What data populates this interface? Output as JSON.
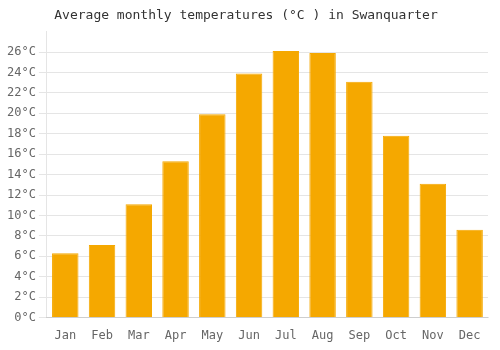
{
  "chart_data": {
    "type": "bar",
    "title": "Average monthly temperatures (°C ) in Swanquarter",
    "categories": [
      "Jan",
      "Feb",
      "Mar",
      "Apr",
      "May",
      "Jun",
      "Jul",
      "Aug",
      "Sep",
      "Oct",
      "Nov",
      "Dec"
    ],
    "values": [
      6.3,
      7.1,
      11.1,
      15.3,
      19.9,
      23.9,
      26.1,
      25.9,
      23.1,
      17.8,
      13.1,
      8.6
    ],
    "color": "#F5A800",
    "ylim": [
      0,
      28
    ],
    "yticks": [
      {
        "value": 0,
        "label": "0°C"
      },
      {
        "value": 2,
        "label": "2°C"
      },
      {
        "value": 4,
        "label": "4°C"
      },
      {
        "value": 6,
        "label": "6°C"
      },
      {
        "value": 8,
        "label": "8°C"
      },
      {
        "value": 10,
        "label": "10°C"
      },
      {
        "value": 12,
        "label": "12°C"
      },
      {
        "value": 14,
        "label": "14°C"
      },
      {
        "value": 16,
        "label": "16°C"
      },
      {
        "value": 18,
        "label": "18°C"
      },
      {
        "value": 20,
        "label": "20°C"
      },
      {
        "value": 22,
        "label": "22°C"
      },
      {
        "value": 24,
        "label": "24°C"
      },
      {
        "value": 26,
        "label": "26°C"
      }
    ],
    "grid": true
  }
}
